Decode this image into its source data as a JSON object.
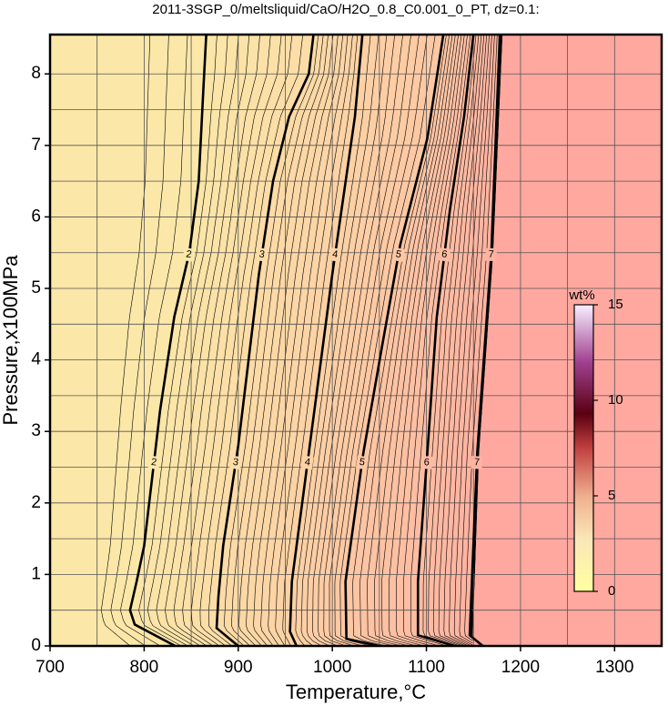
{
  "chart_data": {
    "type": "contour",
    "title": "2011-3SGP_0/meltsliquid/CaO/H2O_0.8_C0.001_0_PT, dz=0.1:",
    "xlabel": "Temperature,°C",
    "ylabel": "Pressure,x100MPa",
    "xlim": [
      700,
      1350
    ],
    "ylim": [
      0,
      8.55
    ],
    "xticks": [
      700,
      800,
      900,
      1000,
      1100,
      1200,
      1300
    ],
    "yticks": [
      0,
      1,
      2,
      3,
      4,
      5,
      6,
      7,
      8
    ],
    "xminorticks": [
      750,
      850,
      950,
      1050,
      1150,
      1250
    ],
    "yminorticks": [
      0.5,
      1.5,
      2.5,
      3.5,
      4.5,
      5.5,
      6.5,
      7.5
    ],
    "grid": true,
    "low_color": "#fbe7a8",
    "high_color": "#ffa8a0",
    "contours": [
      {
        "level": 2,
        "x": [
          833,
          790,
          785,
          792,
          800,
          817,
          832,
          848,
          858,
          863,
          866
        ],
        "y": [
          0,
          0.3,
          0.5,
          0.9,
          1.4,
          3.3,
          4.6,
          5.5,
          6.5,
          7.8,
          8.55
        ]
      },
      {
        "level": 3,
        "x": [
          900,
          877,
          879,
          884,
          900,
          922,
          937,
          954,
          975,
          980
        ],
        "y": [
          0,
          0.25,
          0.7,
          1.4,
          2.8,
          5.2,
          6.5,
          7.4,
          8.0,
          8.55
        ]
      },
      {
        "level": 4,
        "x": [
          962,
          955,
          957,
          976,
          1000,
          1024,
          1032
        ],
        "y": [
          0,
          0.2,
          0.9,
          2.8,
          5.2,
          7.4,
          8.55
        ]
      },
      {
        "level": 5,
        "x": [
          1050,
          1015,
          1014,
          1033,
          1053,
          1072,
          1101,
          1118
        ],
        "y": [
          0,
          0.1,
          0.9,
          2.7,
          4.2,
          5.6,
          7.1,
          8.55
        ]
      },
      {
        "level": 6,
        "x": [
          1130,
          1091,
          1091,
          1101,
          1111,
          1125,
          1140,
          1150
        ],
        "y": [
          0,
          0.15,
          0.9,
          2.7,
          4.6,
          6.1,
          7.4,
          8.55
        ]
      },
      {
        "level": 7,
        "x": [
          1160,
          1146,
          1154,
          1169,
          1178
        ],
        "y": [
          0,
          0.15,
          2.7,
          5.5,
          8.55
        ]
      }
    ],
    "boundary": {
      "x": [
        1149,
        1156,
        1171,
        1181
      ],
      "y": [
        0,
        2.7,
        5.5,
        8.55
      ]
    },
    "colorbar": {
      "label": "wt%",
      "lim": [
        0,
        15
      ],
      "ticks": [
        0,
        5,
        10,
        15
      ]
    }
  }
}
